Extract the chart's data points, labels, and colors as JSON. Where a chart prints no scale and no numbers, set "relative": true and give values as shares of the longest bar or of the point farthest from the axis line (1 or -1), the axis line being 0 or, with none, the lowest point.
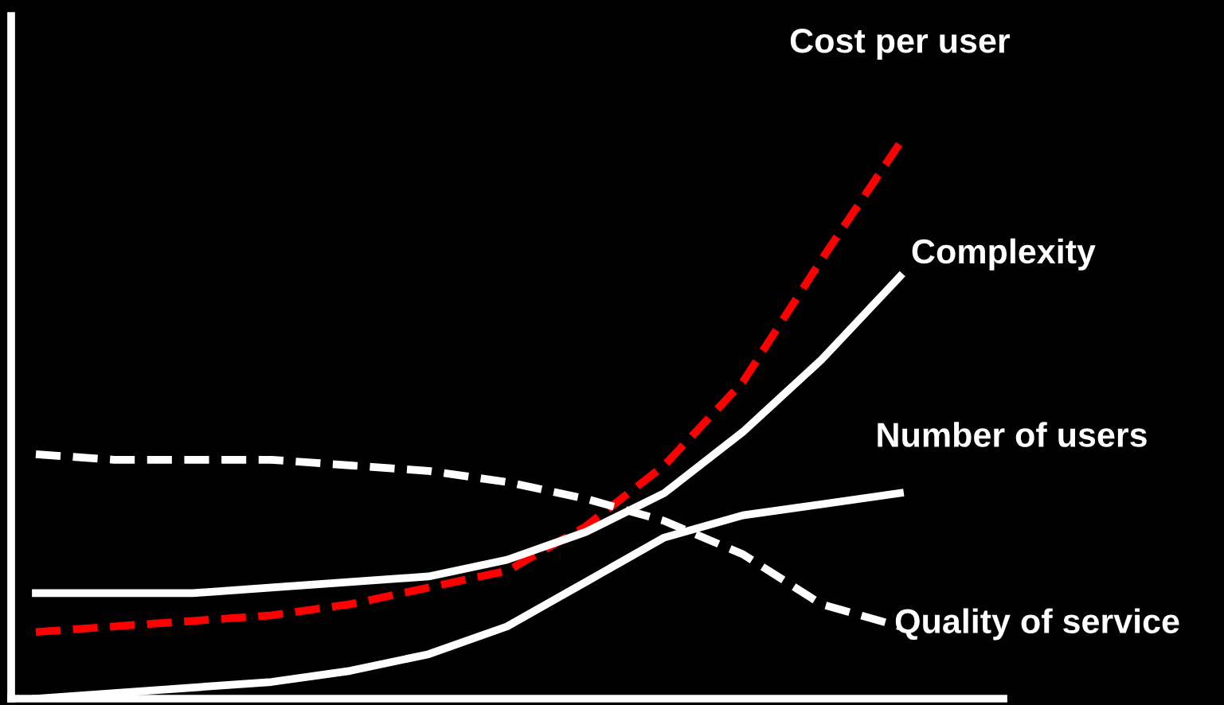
{
  "chart_data": {
    "type": "line",
    "relative": true,
    "legend": false,
    "categories": [
      null,
      null,
      null,
      null,
      null,
      null,
      null,
      null,
      null,
      null,
      null,
      null
    ],
    "series": [
      {
        "name": "Cost per user",
        "color": "#ff0000",
        "line_style": "dashed",
        "values": [
          0.12,
          0.13,
          0.14,
          0.15,
          0.17,
          0.2,
          0.23,
          0.31,
          0.42,
          0.57,
          0.79,
          1
        ]
      },
      {
        "name": "Complexity",
        "color": "#ffffff",
        "line_style": "solid",
        "values": [
          0.19,
          0.19,
          0.19,
          0.2,
          0.21,
          0.22,
          0.25,
          0.3,
          0.37,
          0.48,
          0.61,
          0.76
        ]
      },
      {
        "name": "Number of users",
        "color": "#ffffff",
        "line_style": "solid",
        "values": [
          0,
          0.01,
          0.02,
          0.03,
          0.05,
          0.08,
          0.13,
          0.21,
          0.29,
          0.33,
          0.35,
          0.37
        ]
      },
      {
        "name": "Quality of service",
        "color": "#ffffff",
        "line_style": "dashed",
        "values": [
          0.44,
          0.43,
          0.43,
          0.43,
          0.42,
          0.41,
          0.39,
          0.36,
          0.32,
          0.26,
          0.17,
          0.13
        ]
      }
    ]
  }
}
